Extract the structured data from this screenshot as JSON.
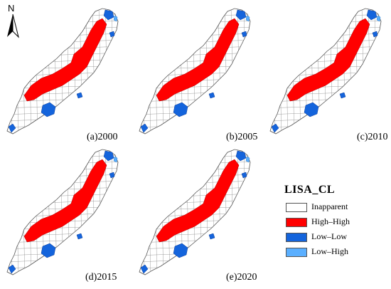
{
  "north_arrow": {
    "label": "N"
  },
  "panels": [
    {
      "label": "(a)2000"
    },
    {
      "label": "(b)2005"
    },
    {
      "label": "(c)2010"
    },
    {
      "label": "(d)2015"
    },
    {
      "label": "(e)2020"
    }
  ],
  "legend": {
    "title": "LISA_CL",
    "items": [
      {
        "label": "Inapparent",
        "color": "#ffffff"
      },
      {
        "label": "High–High",
        "color": "#ff0000"
      },
      {
        "label": "Low–Low",
        "color": "#1464dc"
      },
      {
        "label": "Low–High",
        "color": "#5aafff"
      }
    ]
  },
  "colors": {
    "inapparent": "#ffffff",
    "high_high": "#ff0000",
    "low_low": "#1464dc",
    "low_high": "#5aafff",
    "boundary": "#555555"
  }
}
